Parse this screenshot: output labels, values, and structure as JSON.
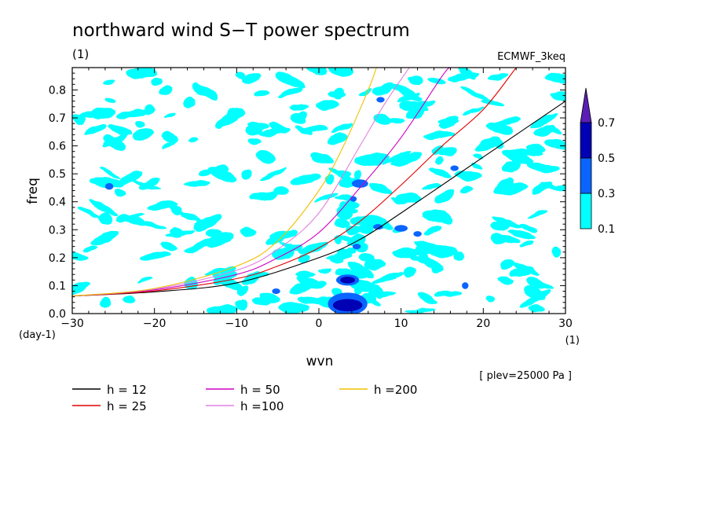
{
  "chart_data": {
    "type": "heatmap",
    "title": "northward wind S−T power spectrum",
    "subtitle_left": "(1)",
    "subtitle_right": "ECMWF_3keq",
    "xlabel": "wvn",
    "ylabel": "freq",
    "x_unit": "(1)",
    "y_unit": "(day-1)",
    "xlim": [
      -30,
      30
    ],
    "ylim": [
      0,
      0.88
    ],
    "x_ticks": [
      -30,
      -20,
      -10,
      0,
      10,
      20,
      30
    ],
    "x_tick_labels": [
      "−30",
      "−20",
      "−10",
      "0",
      "10",
      "20",
      "30"
    ],
    "y_ticks": [
      0.0,
      0.1,
      0.2,
      0.3,
      0.4,
      0.5,
      0.6,
      0.7,
      0.8
    ],
    "y_tick_labels": [
      "0.0",
      "0.1",
      "0.2",
      "0.3",
      "0.4",
      "0.5",
      "0.6",
      "0.7",
      "0.8"
    ],
    "annotation": "[ plev=25000 Pa ]",
    "colorbar": {
      "levels": [
        0.1,
        0.3,
        0.5,
        0.7
      ],
      "level_labels": [
        "0.1",
        "0.3",
        "0.5",
        "0.7"
      ],
      "colors": [
        "#00ffff",
        "#0a64ff",
        "#0000b4",
        "#5a1eb4"
      ]
    },
    "dispersion_curves": [
      {
        "name": "h = 12",
        "h": 12,
        "color": "#000000",
        "points": [
          [
            -30,
            0.063
          ],
          [
            -20,
            0.078
          ],
          [
            -10,
            0.11
          ],
          [
            0,
            0.2
          ],
          [
            5,
            0.265
          ],
          [
            10,
            0.36
          ],
          [
            20,
            0.56
          ],
          [
            30,
            0.76
          ]
        ]
      },
      {
        "name": "h = 25",
        "h": 25,
        "color": "#e00000",
        "points": [
          [
            -30,
            0.063
          ],
          [
            -20,
            0.081
          ],
          [
            -10,
            0.125
          ],
          [
            -5,
            0.17
          ],
          [
            0,
            0.235
          ],
          [
            5,
            0.33
          ],
          [
            10,
            0.46
          ],
          [
            15,
            0.6
          ],
          [
            20,
            0.73
          ],
          [
            24,
            0.88
          ]
        ]
      },
      {
        "name": "h = 50",
        "h": 50,
        "color": "#d000c0",
        "points": [
          [
            -30,
            0.063
          ],
          [
            -20,
            0.085
          ],
          [
            -10,
            0.14
          ],
          [
            -5,
            0.2
          ],
          [
            0,
            0.29
          ],
          [
            5,
            0.45
          ],
          [
            10,
            0.63
          ],
          [
            15,
            0.85
          ],
          [
            16,
            0.88
          ]
        ]
      },
      {
        "name": "h =100",
        "h": 100,
        "color": "#e080e0",
        "points": [
          [
            -30,
            0.063
          ],
          [
            -20,
            0.088
          ],
          [
            -10,
            0.155
          ],
          [
            -5,
            0.23
          ],
          [
            0,
            0.36
          ],
          [
            5,
            0.6
          ],
          [
            8,
            0.75
          ],
          [
            11,
            0.88
          ]
        ]
      },
      {
        "name": "h =200",
        "h": 200,
        "color": "#f0c000",
        "points": [
          [
            -30,
            0.063
          ],
          [
            -20,
            0.09
          ],
          [
            -10,
            0.17
          ],
          [
            -5,
            0.26
          ],
          [
            0,
            0.44
          ],
          [
            3,
            0.6
          ],
          [
            6,
            0.8
          ],
          [
            7,
            0.88
          ]
        ]
      }
    ],
    "features": [
      {
        "level": 0.3,
        "cx": 3.5,
        "cy": 0.035,
        "rx": 2.4,
        "ry": 0.04
      },
      {
        "level": 0.5,
        "cx": 3.5,
        "cy": 0.03,
        "rx": 1.8,
        "ry": 0.022
      },
      {
        "level": 0.3,
        "cx": 3.5,
        "cy": 0.12,
        "rx": 1.4,
        "ry": 0.02
      },
      {
        "level": 0.5,
        "cx": 3.5,
        "cy": 0.12,
        "rx": 0.9,
        "ry": 0.012
      },
      {
        "level": 0.3,
        "cx": 5,
        "cy": 0.465,
        "rx": 1.0,
        "ry": 0.015
      },
      {
        "level": 0.3,
        "cx": 7.5,
        "cy": 0.765,
        "rx": 0.5,
        "ry": 0.01
      },
      {
        "level": 0.3,
        "cx": -25.5,
        "cy": 0.455,
        "rx": 0.5,
        "ry": 0.012
      },
      {
        "level": 0.3,
        "cx": 10,
        "cy": 0.305,
        "rx": 0.8,
        "ry": 0.012
      },
      {
        "level": 0.3,
        "cx": 7.2,
        "cy": 0.31,
        "rx": 0.6,
        "ry": 0.01
      },
      {
        "level": 0.3,
        "cx": 12,
        "cy": 0.285,
        "rx": 0.5,
        "ry": 0.01
      },
      {
        "level": 0.3,
        "cx": 4.6,
        "cy": 0.24,
        "rx": 0.5,
        "ry": 0.01
      },
      {
        "level": 0.3,
        "cx": 4.2,
        "cy": 0.41,
        "rx": 0.4,
        "ry": 0.01
      },
      {
        "level": 0.3,
        "cx": 17.8,
        "cy": 0.1,
        "rx": 0.4,
        "ry": 0.012
      },
      {
        "level": 0.3,
        "cx": 16.5,
        "cy": 0.52,
        "rx": 0.5,
        "ry": 0.01
      },
      {
        "level": 0.3,
        "cx": -5.2,
        "cy": 0.08,
        "rx": 0.5,
        "ry": 0.01
      }
    ]
  }
}
